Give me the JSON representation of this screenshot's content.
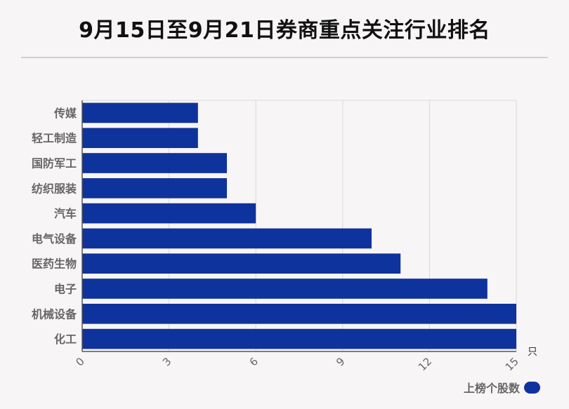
{
  "title": "9月15日至9月21日券商重点关注行业排名",
  "unit_label": "只",
  "legend": {
    "label": "上榜个股数"
  },
  "colors": {
    "bar": "#0f339c",
    "grid": "#d9d9d9",
    "axis": "#555555",
    "label": "#666666"
  },
  "chart_data": {
    "type": "bar",
    "orientation": "horizontal",
    "categories": [
      "传媒",
      "轻工制造",
      "国防军工",
      "纺织服装",
      "汽车",
      "电气设备",
      "医药生物",
      "电子",
      "机械设备",
      "化工"
    ],
    "series": [
      {
        "name": "上榜个股数",
        "values": [
          4,
          4,
          5,
          5,
          6,
          10,
          11,
          14,
          15,
          15
        ]
      }
    ],
    "xlim": [
      0,
      15
    ],
    "xticks": [
      "0",
      "3",
      "6",
      "9",
      "12",
      "15"
    ],
    "xlabel": "只",
    "ylabel": "",
    "grid": true,
    "legend_position": "bottom-right"
  }
}
